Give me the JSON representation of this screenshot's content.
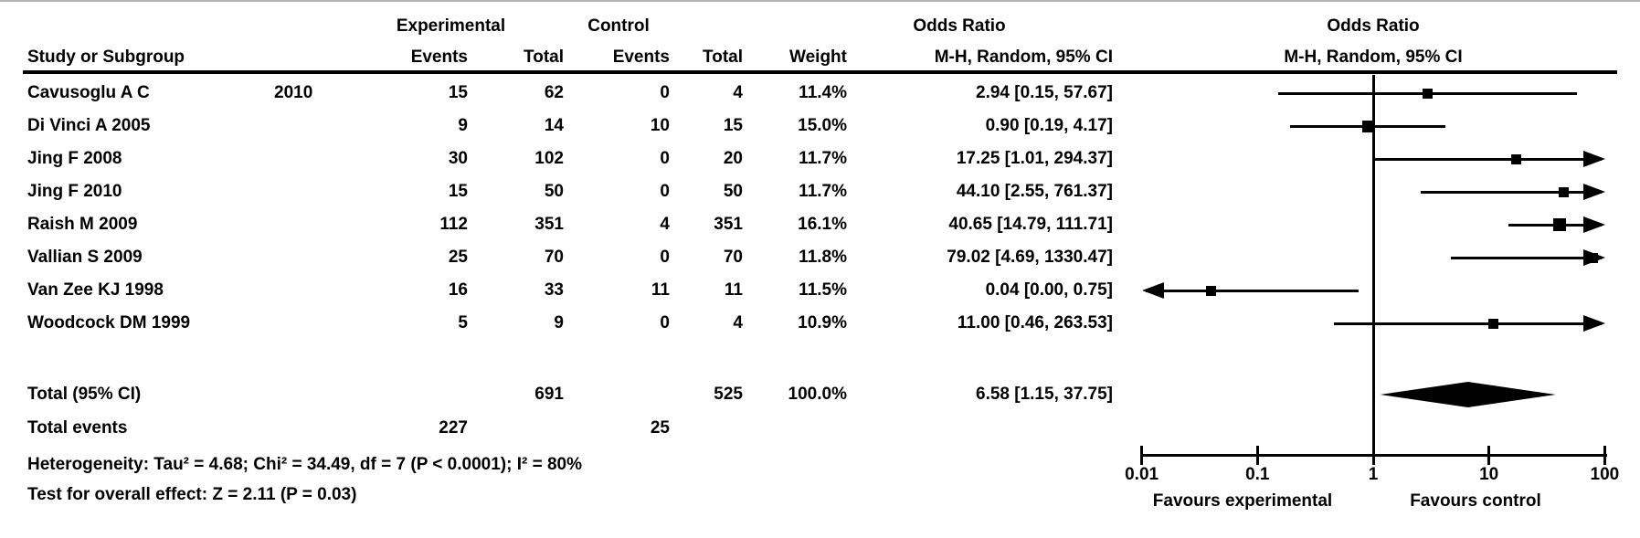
{
  "header": {
    "study_col": "Study or Subgroup",
    "group_experimental": "Experimental",
    "group_control": "Control",
    "events_exp": "Events",
    "total_exp": "Total",
    "events_ctrl": "Events",
    "total_ctrl": "Total",
    "weight": "Weight",
    "or_stat_title": "Odds Ratio",
    "or_stat_subtitle": "M-H, Random, 95% CI",
    "or_plot_title": "Odds Ratio",
    "or_plot_subtitle": "M-H, Random, 95% CI"
  },
  "chart_data": {
    "type": "forest",
    "effect_measure": "Odds Ratio",
    "method": "M-H, Random, 95% CI",
    "x_scale": "log",
    "xlim": [
      0.01,
      100
    ],
    "x_ticks": [
      0.01,
      0.1,
      1,
      10,
      100
    ],
    "x_tick_labels": [
      "0.01",
      "0.1",
      "1",
      "10",
      "100"
    ],
    "favours_left": "Favours experimental",
    "favours_right": "Favours control",
    "studies": [
      {
        "study": "Cavusoglu A C",
        "year_col": "2010",
        "exp_events": 15,
        "exp_total": 62,
        "ctrl_events": 0,
        "ctrl_total": 4,
        "weight": "11.4%",
        "weight_pct": 11.4,
        "or": 2.94,
        "ci_low": 0.15,
        "ci_high": 57.67,
        "or_ci_label": "2.94 [0.15, 57.67]"
      },
      {
        "study": "Di Vinci A 2005",
        "year_col": "",
        "exp_events": 9,
        "exp_total": 14,
        "ctrl_events": 10,
        "ctrl_total": 15,
        "weight": "15.0%",
        "weight_pct": 15.0,
        "or": 0.9,
        "ci_low": 0.19,
        "ci_high": 4.17,
        "or_ci_label": "0.90 [0.19, 4.17]"
      },
      {
        "study": "Jing F 2008",
        "year_col": "",
        "exp_events": 30,
        "exp_total": 102,
        "ctrl_events": 0,
        "ctrl_total": 20,
        "weight": "11.7%",
        "weight_pct": 11.7,
        "or": 17.25,
        "ci_low": 1.01,
        "ci_high": 294.37,
        "or_ci_label": "17.25 [1.01, 294.37]"
      },
      {
        "study": "Jing F 2010",
        "year_col": "",
        "exp_events": 15,
        "exp_total": 50,
        "ctrl_events": 0,
        "ctrl_total": 50,
        "weight": "11.7%",
        "weight_pct": 11.7,
        "or": 44.1,
        "ci_low": 2.55,
        "ci_high": 761.37,
        "or_ci_label": "44.10 [2.55, 761.37]"
      },
      {
        "study": "Raish M 2009",
        "year_col": "",
        "exp_events": 112,
        "exp_total": 351,
        "ctrl_events": 4,
        "ctrl_total": 351,
        "weight": "16.1%",
        "weight_pct": 16.1,
        "or": 40.65,
        "ci_low": 14.79,
        "ci_high": 111.71,
        "or_ci_label": "40.65 [14.79, 111.71]"
      },
      {
        "study": "Vallian S 2009",
        "year_col": "",
        "exp_events": 25,
        "exp_total": 70,
        "ctrl_events": 0,
        "ctrl_total": 70,
        "weight": "11.8%",
        "weight_pct": 11.8,
        "or": 79.02,
        "ci_low": 4.69,
        "ci_high": 1330.47,
        "or_ci_label": "79.02 [4.69, 1330.47]"
      },
      {
        "study": "Van Zee KJ 1998",
        "year_col": "",
        "exp_events": 16,
        "exp_total": 33,
        "ctrl_events": 11,
        "ctrl_total": 11,
        "weight": "11.5%",
        "weight_pct": 11.5,
        "or": 0.04,
        "ci_low": 0.0,
        "ci_high": 0.75,
        "or_ci_label": "0.04 [0.00, 0.75]"
      },
      {
        "study": "Woodcock DM 1999",
        "year_col": "",
        "exp_events": 5,
        "exp_total": 9,
        "ctrl_events": 0,
        "ctrl_total": 4,
        "weight": "10.9%",
        "weight_pct": 10.9,
        "or": 11.0,
        "ci_low": 0.46,
        "ci_high": 263.53,
        "or_ci_label": "11.00 [0.46, 263.53]"
      }
    ],
    "total": {
      "label": "Total (95% CI)",
      "exp_total": 691,
      "ctrl_total": 525,
      "weight": "100.0%",
      "or": 6.58,
      "ci_low": 1.15,
      "ci_high": 37.75,
      "or_ci_label": "6.58 [1.15, 37.75]"
    },
    "total_events": {
      "label": "Total events",
      "exp": 227,
      "ctrl": 25
    },
    "heterogeneity": "Heterogeneity: Tau² = 4.68; Chi² = 34.49, df = 7 (P < 0.0001); I² = 80%",
    "overall_effect": "Test for overall effect: Z = 2.11 (P = 0.03)"
  }
}
